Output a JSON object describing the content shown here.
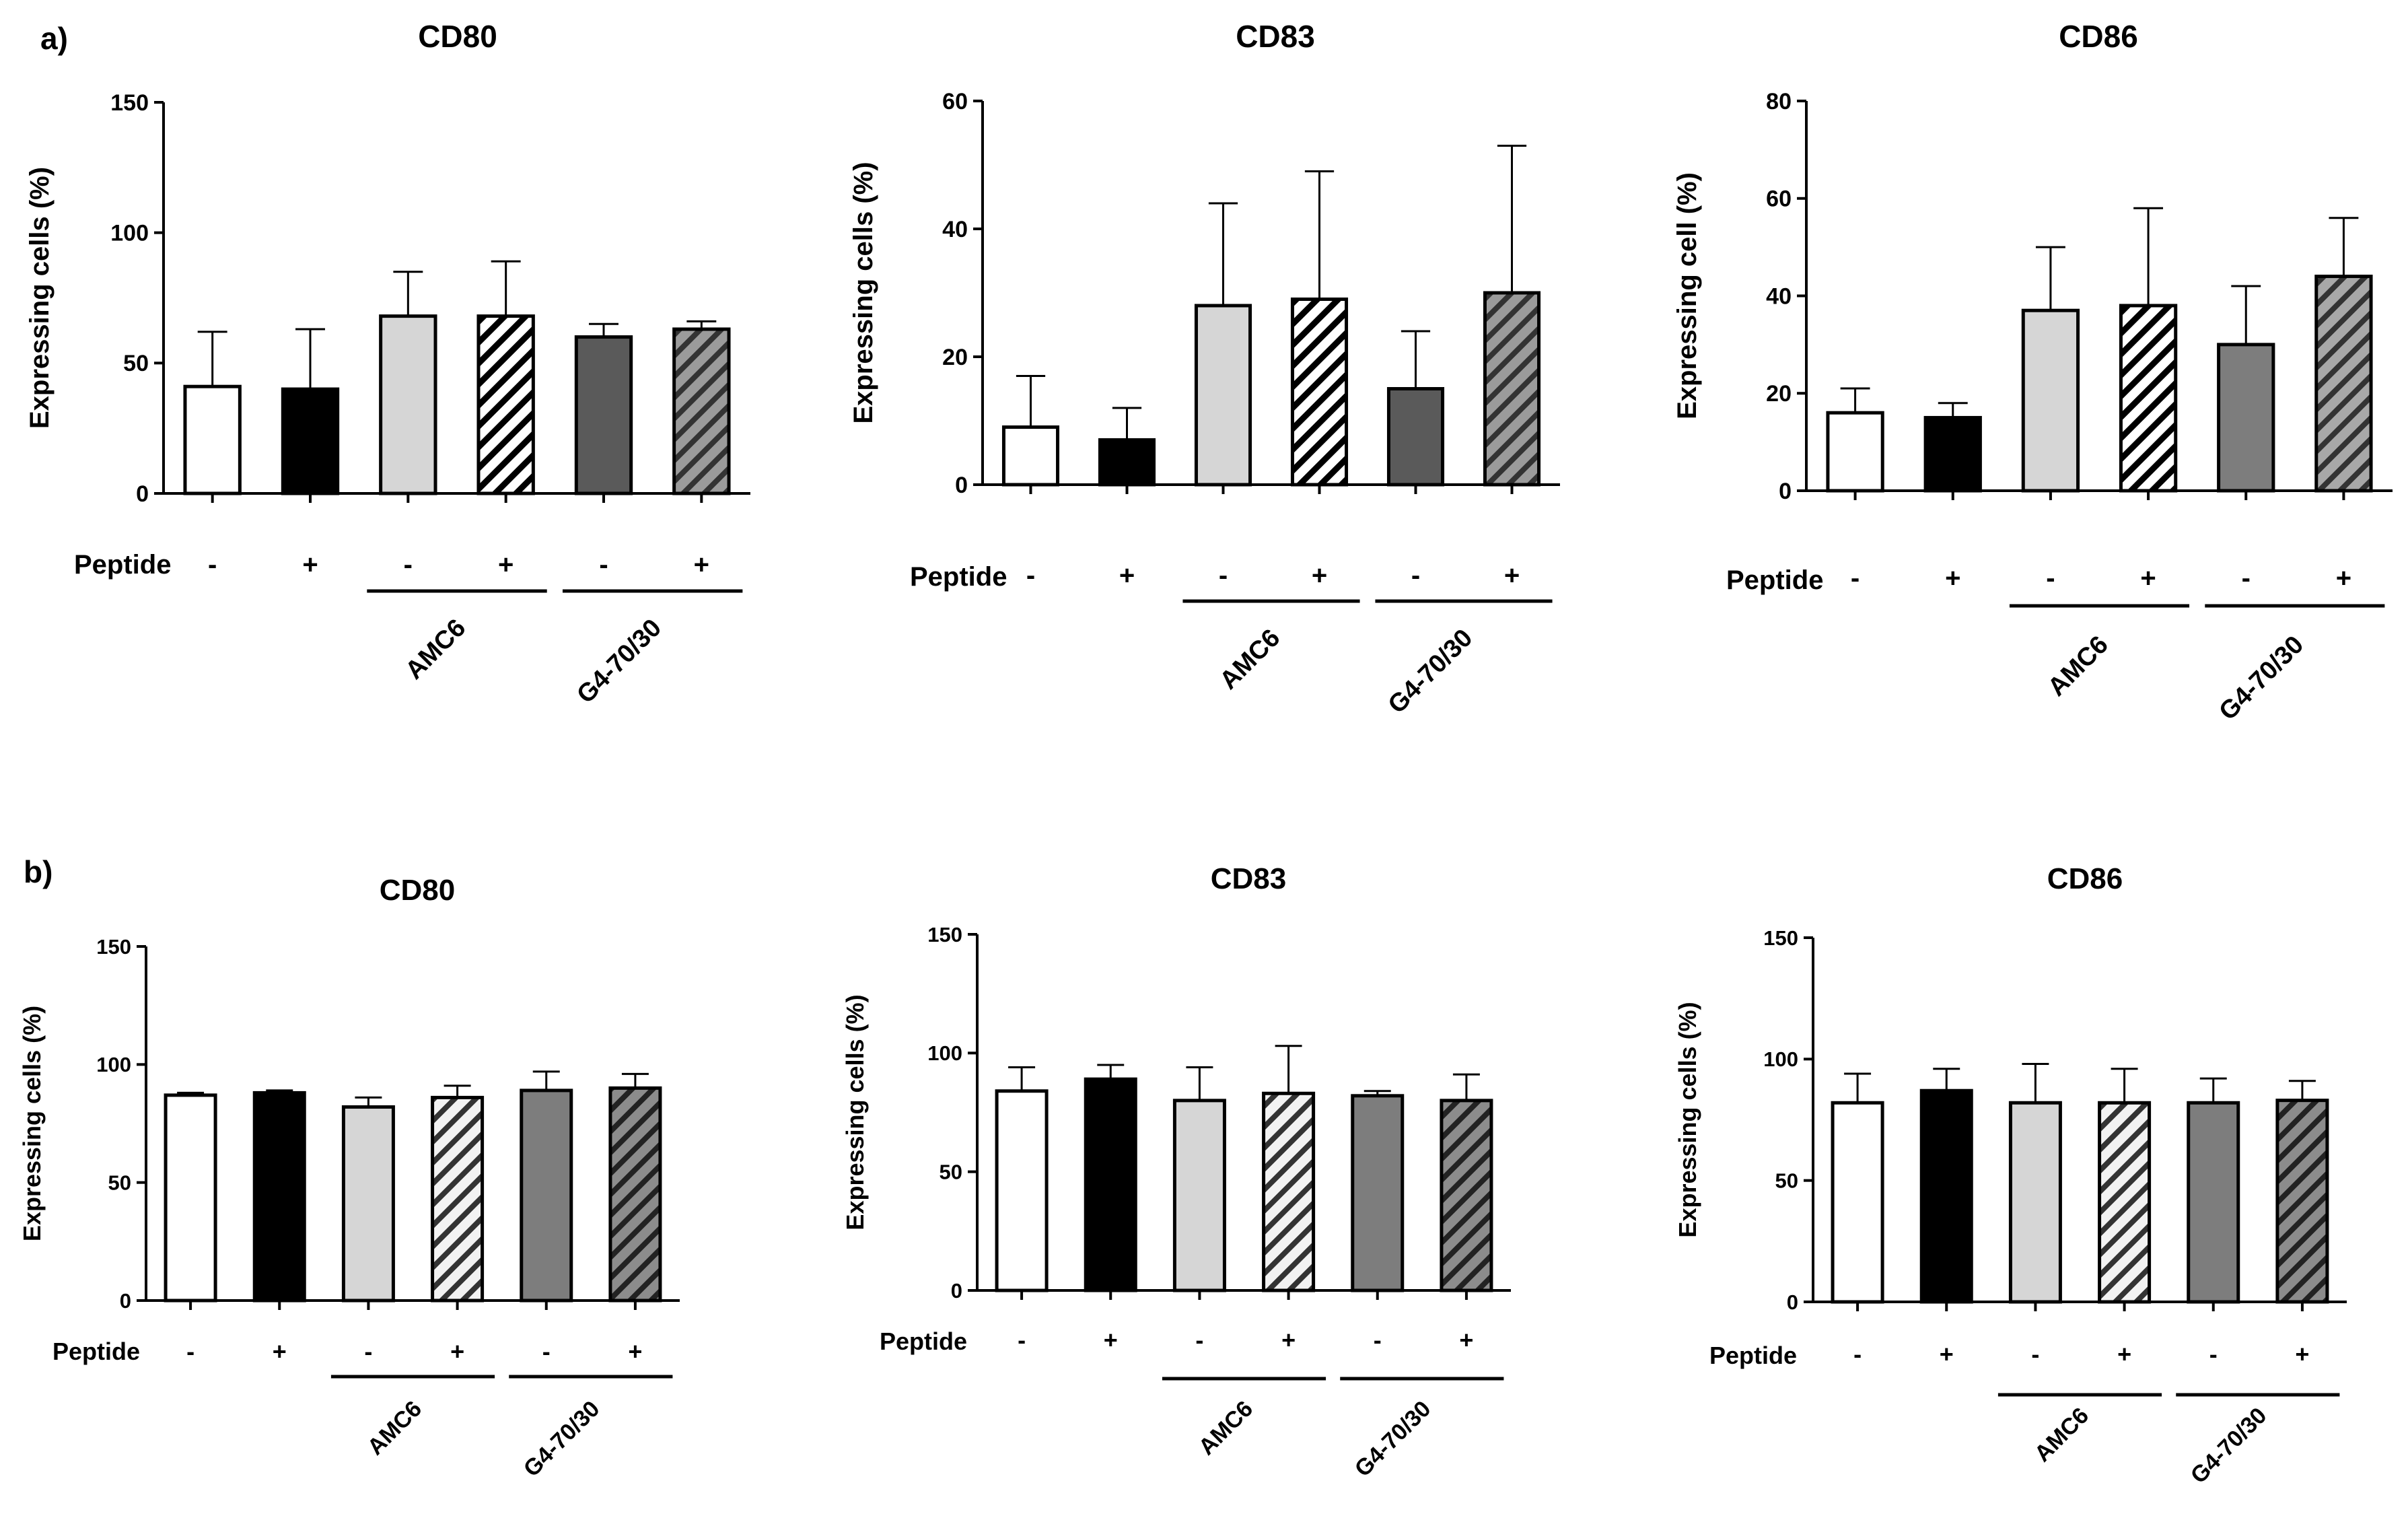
{
  "panel_labels": [
    "a)",
    "b)"
  ],
  "colors": {
    "axis": "#000000",
    "white": "#ffffff",
    "black": "#000000",
    "light_gray": "#d6d6d6",
    "dark_gray_a": "#5a5a5a",
    "mid_gray_b": "#7d7d7d",
    "hatch_stroke": "#000000"
  },
  "chart_data": [
    {
      "panel": "a",
      "type": "bar",
      "title": "CD80",
      "ylabel": "Expressing cells (%)",
      "ylim": [
        0,
        150
      ],
      "yticks": [
        0,
        50,
        100,
        150
      ],
      "categories": [
        "-",
        "+",
        "-",
        "+",
        "-",
        "+"
      ],
      "row_label": "Peptide",
      "group_labels": [
        "AMC6",
        "G4-70/30"
      ],
      "values": [
        41,
        40,
        68,
        68,
        60,
        63
      ],
      "errors": [
        21,
        23,
        17,
        21,
        5,
        3
      ],
      "styles": [
        "white",
        "black",
        "light_gray",
        "hatch_white",
        "dark_gray_a",
        "hatch_gray_a"
      ]
    },
    {
      "panel": "a",
      "type": "bar",
      "title": "CD83",
      "ylabel": "Expressing cells (%)",
      "ylim": [
        0,
        60
      ],
      "yticks": [
        0,
        20,
        40,
        60
      ],
      "categories": [
        "-",
        "+",
        "-",
        "+",
        "-",
        "+"
      ],
      "row_label": "Peptide",
      "group_labels": [
        "AMC6",
        "G4-70/30"
      ],
      "values": [
        9,
        7,
        28,
        29,
        15,
        30
      ],
      "errors": [
        8,
        5,
        16,
        20,
        9,
        23
      ],
      "styles": [
        "white",
        "black",
        "light_gray",
        "hatch_white",
        "dark_gray_a",
        "hatch_gray_a"
      ]
    },
    {
      "panel": "a",
      "type": "bar",
      "title": "CD86",
      "ylabel": "Expressing cell (%)",
      "ylim": [
        0,
        80
      ],
      "yticks": [
        0,
        20,
        40,
        60,
        80
      ],
      "categories": [
        "-",
        "+",
        "-",
        "+",
        "-",
        "+"
      ],
      "row_label": "Peptide",
      "group_labels": [
        "AMC6",
        "G4-70/30"
      ],
      "values": [
        16,
        15,
        37,
        38,
        30,
        44
      ],
      "errors": [
        5,
        3,
        13,
        20,
        12,
        12
      ],
      "styles": [
        "white",
        "black",
        "light_gray",
        "hatch_white",
        "mid_gray_b",
        "hatch_gray_b"
      ]
    },
    {
      "panel": "b",
      "type": "bar",
      "title": "CD80",
      "ylabel": "Expressing cells (%)",
      "ylim": [
        0,
        150
      ],
      "yticks": [
        0,
        50,
        100,
        150
      ],
      "categories": [
        "-",
        "+",
        "-",
        "+",
        "-",
        "+"
      ],
      "row_label": "Peptide",
      "group_labels": [
        "AMC6",
        "G4-70/30"
      ],
      "values": [
        87,
        88,
        82,
        86,
        89,
        90
      ],
      "errors": [
        1,
        1,
        4,
        5,
        8,
        6
      ],
      "styles": [
        "white",
        "black",
        "light_gray",
        "hatch_light",
        "mid_gray_b",
        "hatch_gray_c"
      ]
    },
    {
      "panel": "b",
      "type": "bar",
      "title": "CD83",
      "ylabel": "Expressing cells (%)",
      "ylim": [
        0,
        150
      ],
      "yticks": [
        0,
        50,
        100,
        150
      ],
      "categories": [
        "-",
        "+",
        "-",
        "+",
        "-",
        "+"
      ],
      "row_label": "Peptide",
      "group_labels": [
        "AMC6",
        "G4-70/30"
      ],
      "values": [
        84,
        89,
        80,
        83,
        82,
        80
      ],
      "errors": [
        10,
        6,
        14,
        20,
        2,
        11
      ],
      "styles": [
        "white",
        "black",
        "light_gray",
        "hatch_light",
        "mid_gray_b",
        "hatch_gray_c"
      ]
    },
    {
      "panel": "b",
      "type": "bar",
      "title": "CD86",
      "ylabel": "Expressing cells (%)",
      "ylim": [
        0,
        150
      ],
      "yticks": [
        0,
        50,
        100,
        150
      ],
      "categories": [
        "-",
        "+",
        "-",
        "+",
        "-",
        "+"
      ],
      "row_label": "Peptide",
      "group_labels": [
        "AMC6",
        "G4-70/30"
      ],
      "values": [
        82,
        87,
        82,
        82,
        82,
        83
      ],
      "errors": [
        12,
        9,
        16,
        14,
        10,
        8
      ],
      "styles": [
        "white",
        "black",
        "light_gray",
        "hatch_light",
        "mid_gray_b",
        "hatch_gray_c"
      ]
    }
  ]
}
